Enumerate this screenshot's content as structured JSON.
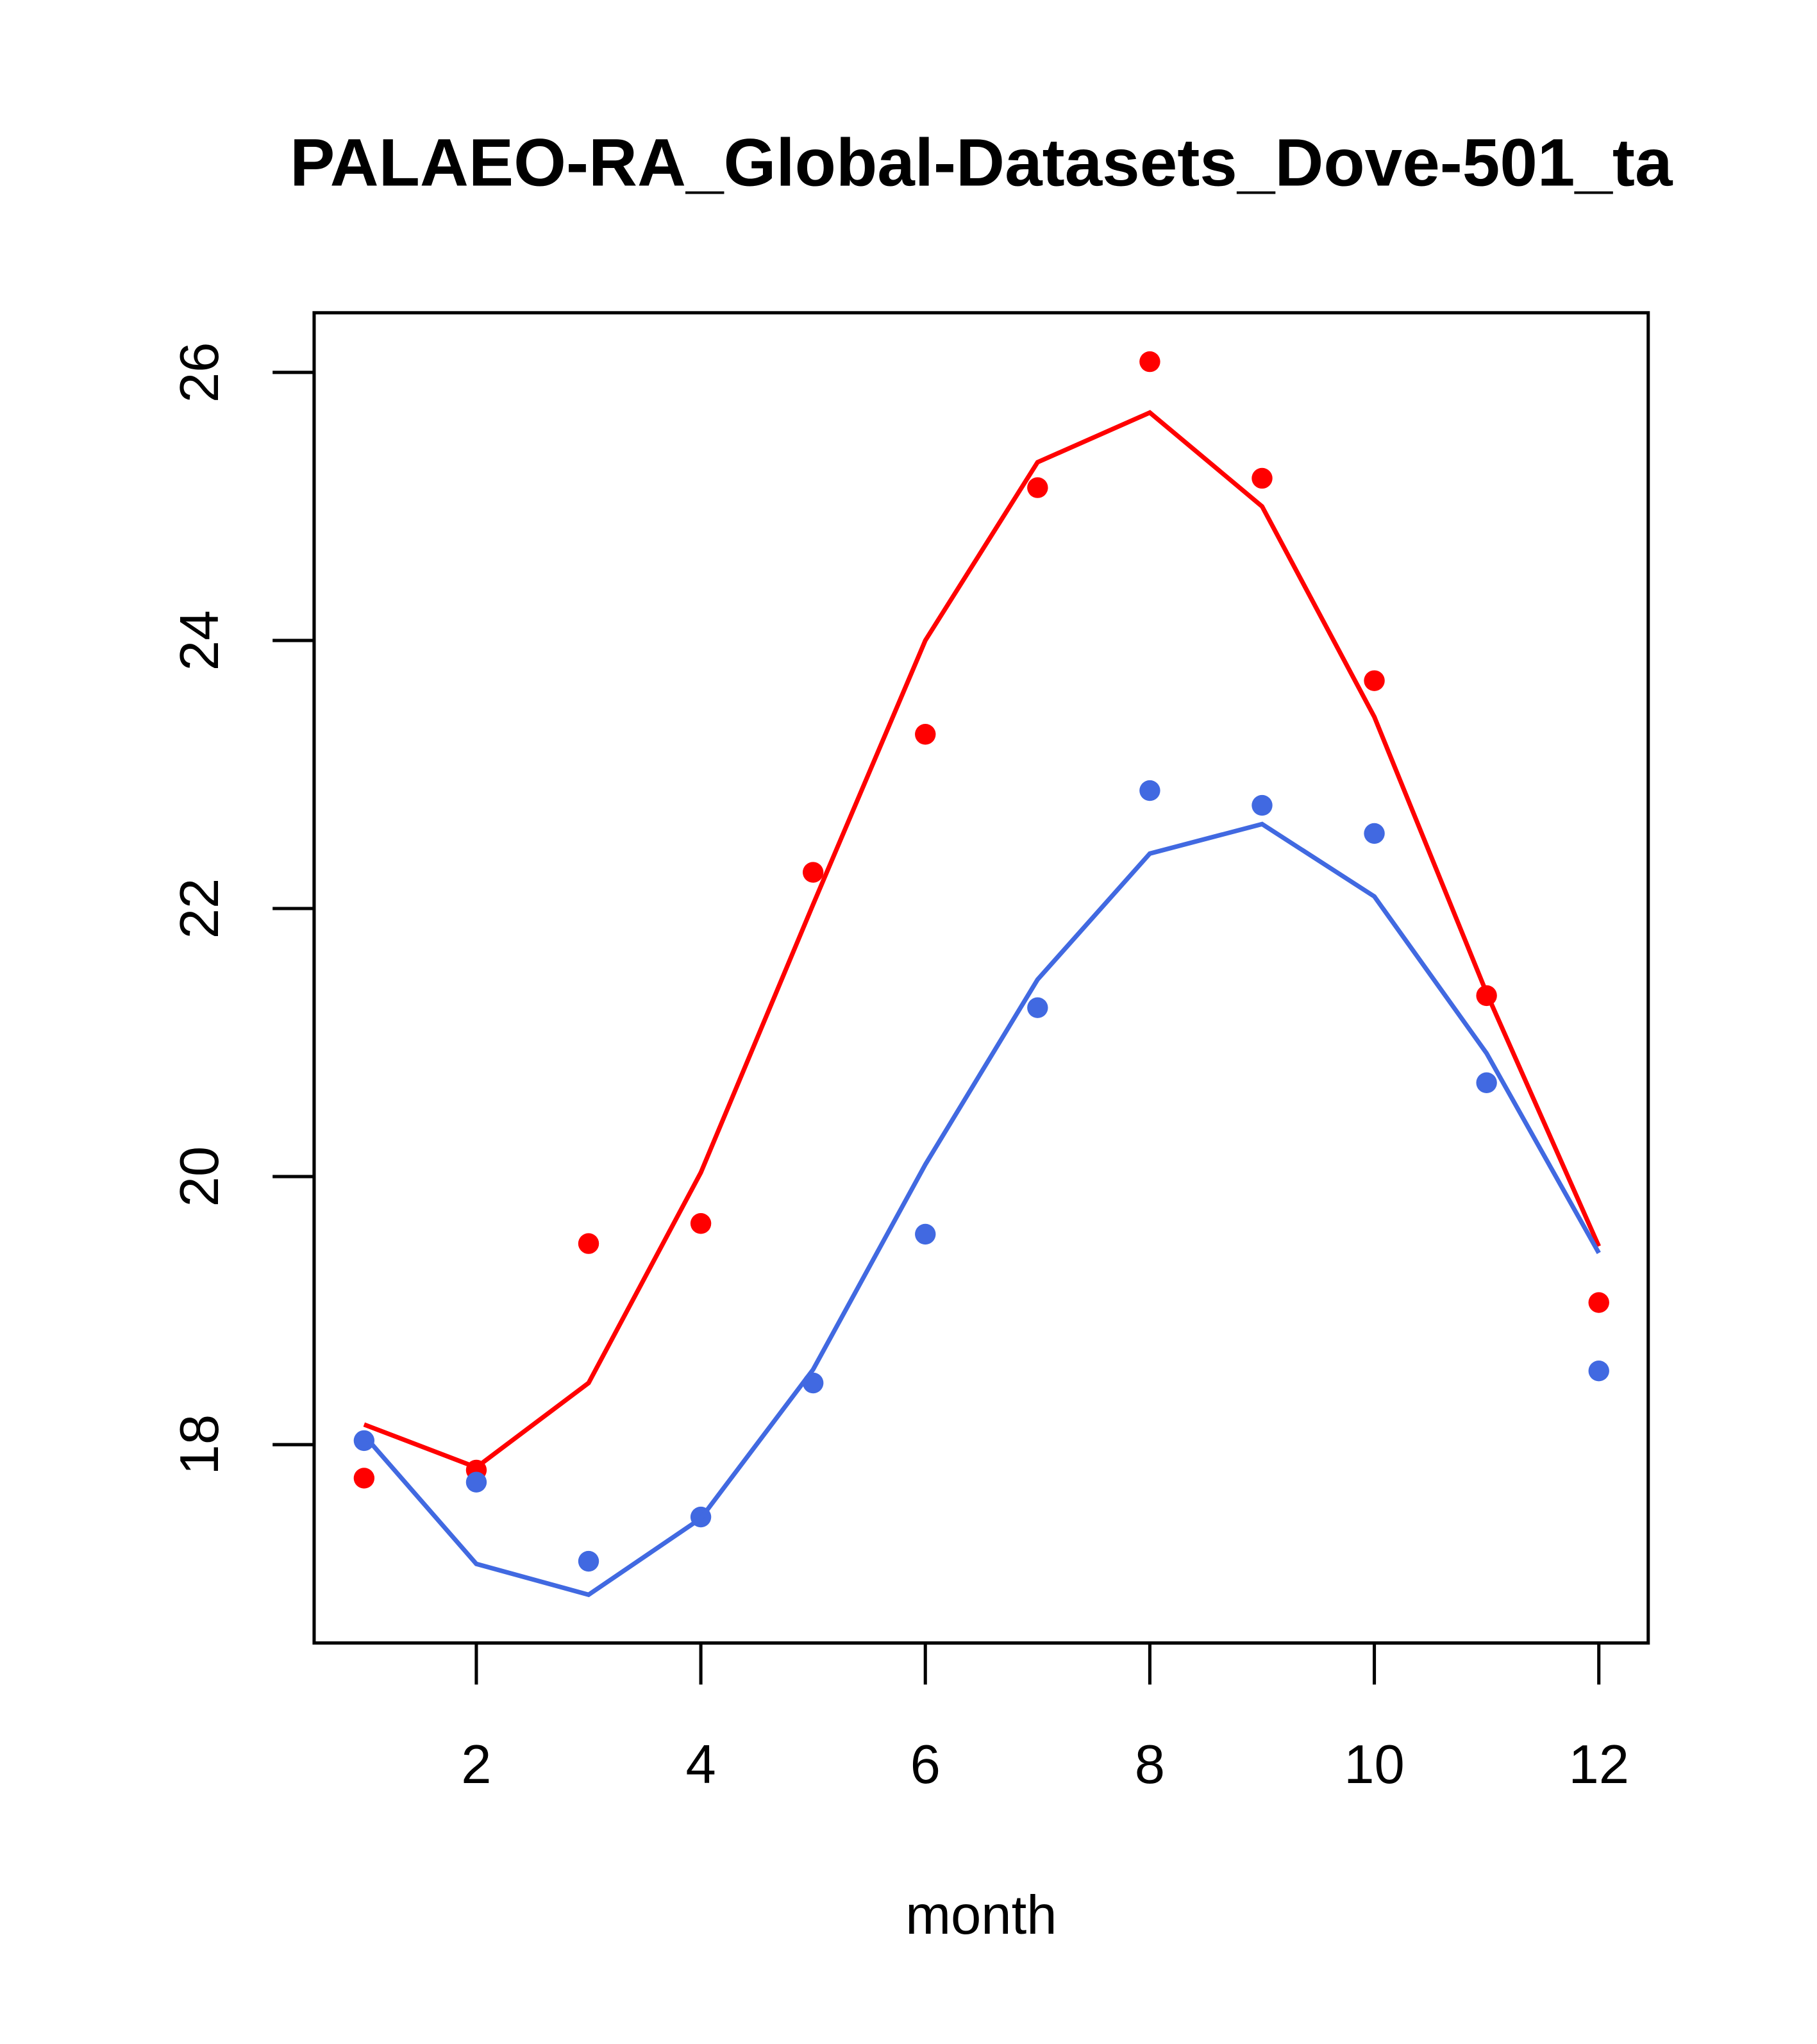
{
  "chart_data": {
    "type": "line",
    "title": "PALAEO-RA_Global-Datasets_Dove-501_ta",
    "xlabel": "month",
    "ylabel": "",
    "xlim": [
      0.555,
      12.44
    ],
    "ylim": [
      16.52,
      26.445
    ],
    "x_ticks": [
      2,
      4,
      6,
      8,
      10,
      12
    ],
    "y_ticks": [
      18,
      20,
      22,
      24,
      26
    ],
    "grid": false,
    "x": [
      1,
      2,
      3,
      4,
      5,
      6,
      7,
      8,
      9,
      10,
      11,
      12
    ],
    "series": [
      {
        "name": "red points",
        "kind": "points",
        "color": "#ff0000",
        "values": [
          17.75,
          17.81,
          19.5,
          19.65,
          22.27,
          23.3,
          25.14,
          26.08,
          25.21,
          23.7,
          21.35,
          19.06
        ]
      },
      {
        "name": "red line",
        "kind": "line",
        "color": "#ff0000",
        "values": [
          18.15,
          17.83,
          18.46,
          20.03,
          22.03,
          24.0,
          25.33,
          25.7,
          25.0,
          23.43,
          21.37,
          19.48
        ]
      },
      {
        "name": "blue points",
        "kind": "points",
        "color": "#4169e1",
        "values": [
          18.03,
          17.72,
          17.13,
          17.46,
          18.46,
          19.57,
          21.26,
          22.88,
          22.77,
          22.56,
          20.7,
          18.55
        ]
      },
      {
        "name": "blue line",
        "kind": "line",
        "color": "#4169e1",
        "values": [
          18.07,
          17.11,
          16.88,
          17.45,
          18.56,
          20.09,
          21.47,
          22.41,
          22.63,
          22.09,
          20.92,
          19.43
        ]
      }
    ]
  }
}
